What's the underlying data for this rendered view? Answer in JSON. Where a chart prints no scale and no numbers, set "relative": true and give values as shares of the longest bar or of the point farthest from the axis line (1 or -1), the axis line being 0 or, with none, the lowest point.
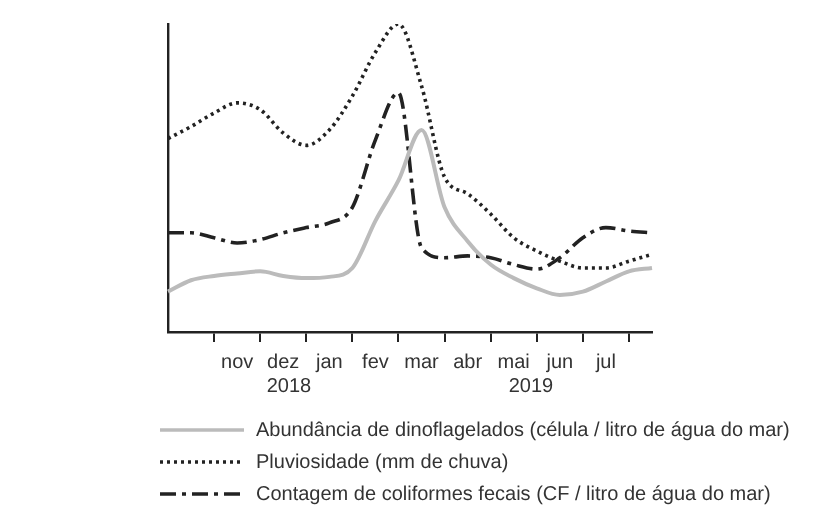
{
  "chart_data": {
    "type": "line",
    "relative": true,
    "legend": "bottom",
    "categories": [
      null,
      null,
      null,
      "nov",
      null,
      "dez",
      null,
      "jan",
      null,
      "fev",
      null,
      "mar",
      null,
      "abr",
      null,
      "mai",
      null,
      "jun",
      null,
      "jul",
      null,
      null
    ],
    "series": [
      {
        "name": "Abundância de dinoflagelados (célula / litro de água do mar)",
        "color": "#bbbbbb",
        "line_style": "solid",
        "values": [
          0.131,
          0.168,
          0.182,
          0.19,
          0.197,
          0.182,
          0.175,
          0.179,
          0.208,
          0.361,
          0.492,
          0.656,
          0.405,
          0.295,
          0.219,
          0.175,
          0.142,
          0.12,
          0.131,
          0.164,
          0.197,
          0.208
        ]
      },
      {
        "name": "Pluviosidade (mm de chuva)",
        "color": "#222222",
        "line_style": "dotted",
        "values": [
          0.628,
          0.667,
          0.711,
          0.744,
          0.722,
          0.646,
          0.606,
          0.656,
          0.766,
          0.908,
          1,
          0.799,
          0.503,
          0.449,
          0.383,
          0.306,
          0.263,
          0.23,
          0.208,
          0.208,
          0.23,
          0.252
        ]
      },
      {
        "name": "Contagem de coliformes fecais (CF / litro de água do mar)",
        "color": "#222222",
        "line_style": "dashdot",
        "values": [
          0.322,
          0.322,
          0.306,
          0.289,
          0.3,
          0.322,
          0.339,
          0.354,
          0.405,
          0.624,
          0.777,
          0.274,
          0.241,
          0.247,
          0.241,
          0.219,
          0.204,
          0.241,
          0.306,
          0.339,
          0.328,
          0.322
        ]
      }
    ],
    "annotations": [
      "2018",
      "2019"
    ]
  }
}
